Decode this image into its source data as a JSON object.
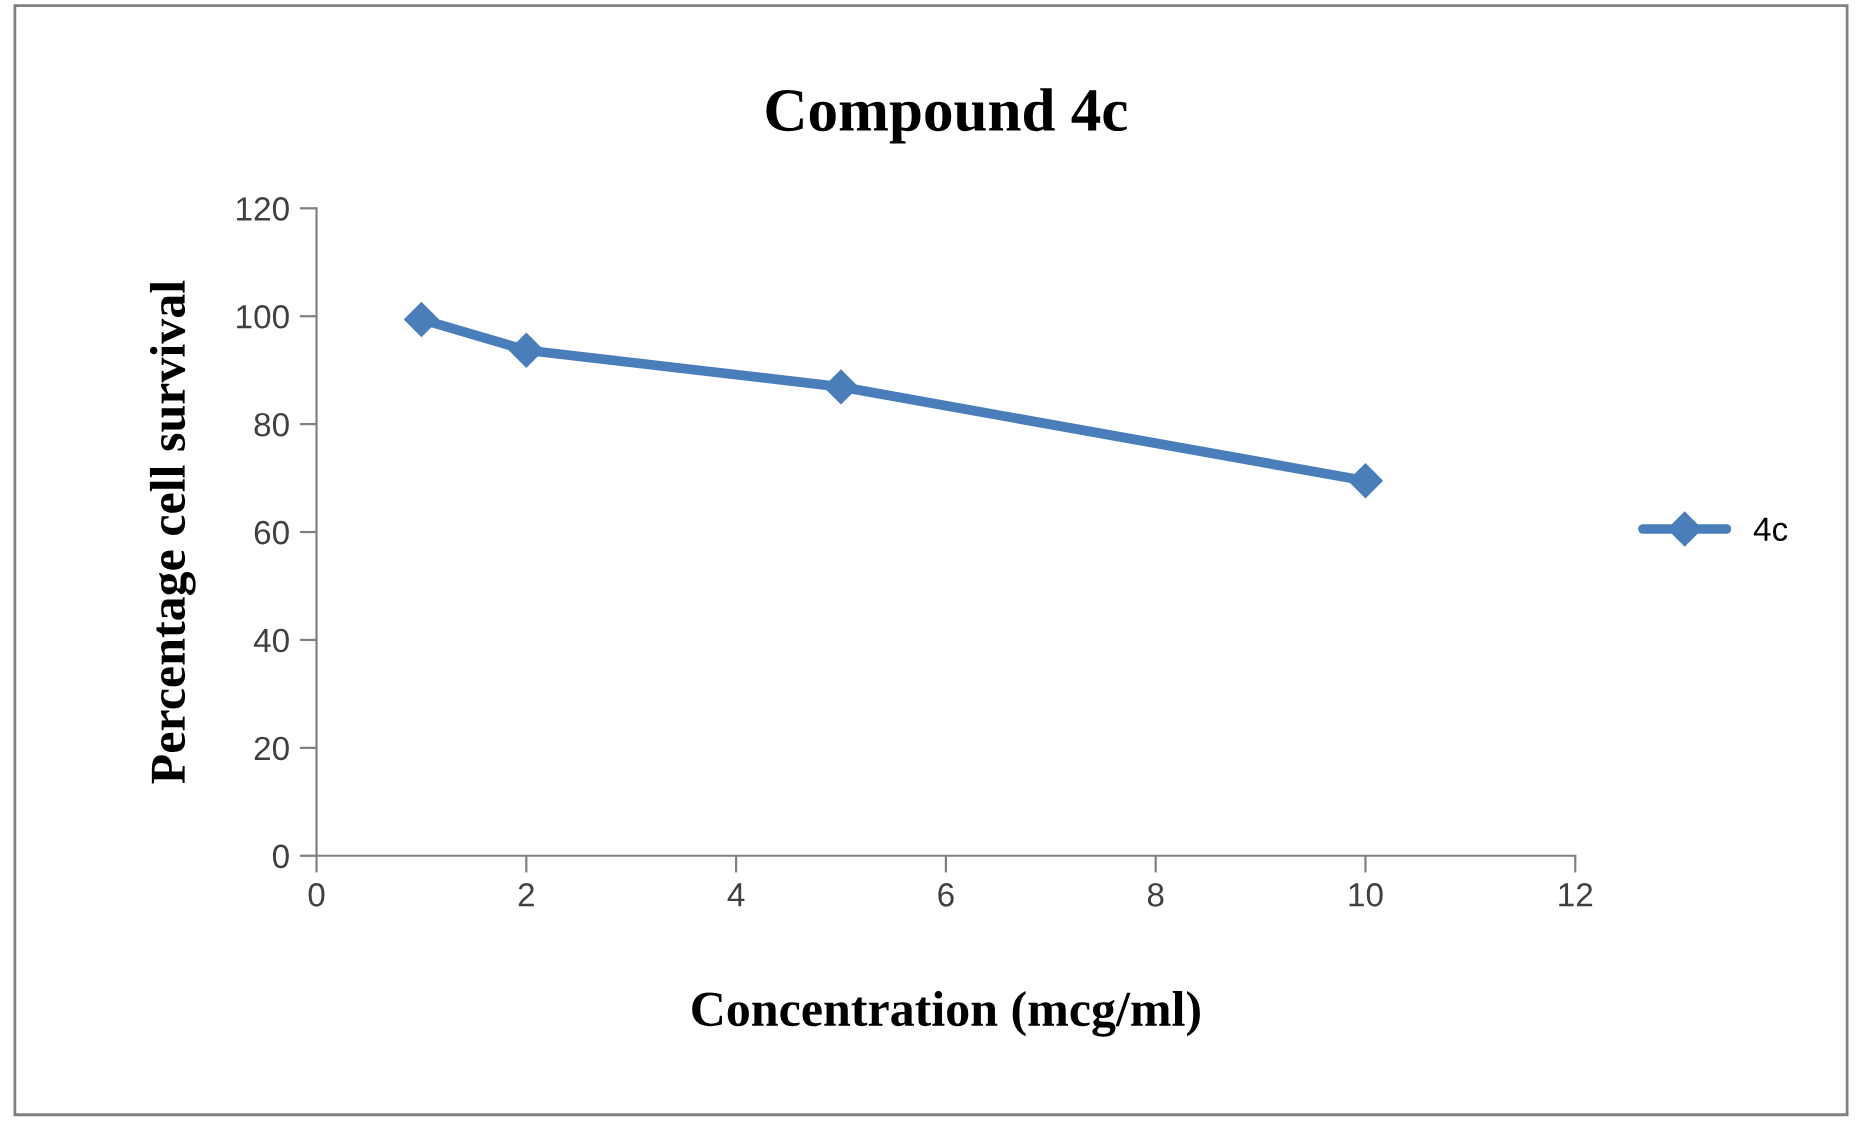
{
  "chart_data": {
    "type": "line",
    "title": "Compound 4c",
    "xlabel": "Concentration (mcg/ml)",
    "ylabel": "Percentage cell survival",
    "x": [
      1,
      2,
      5,
      10
    ],
    "series": [
      {
        "name": "4c",
        "color": "#4a7ebb",
        "values": [
          99.4,
          93.7,
          86.9,
          69.5
        ]
      }
    ],
    "xlim": [
      0,
      12
    ],
    "xticks": [
      0,
      2,
      4,
      6,
      8,
      10,
      12
    ],
    "ylim": [
      0,
      120
    ],
    "yticks": [
      0,
      20,
      40,
      60,
      80,
      100,
      120
    ],
    "grid": false,
    "legend": "right",
    "marker": "diamond",
    "line_style": "solid"
  }
}
